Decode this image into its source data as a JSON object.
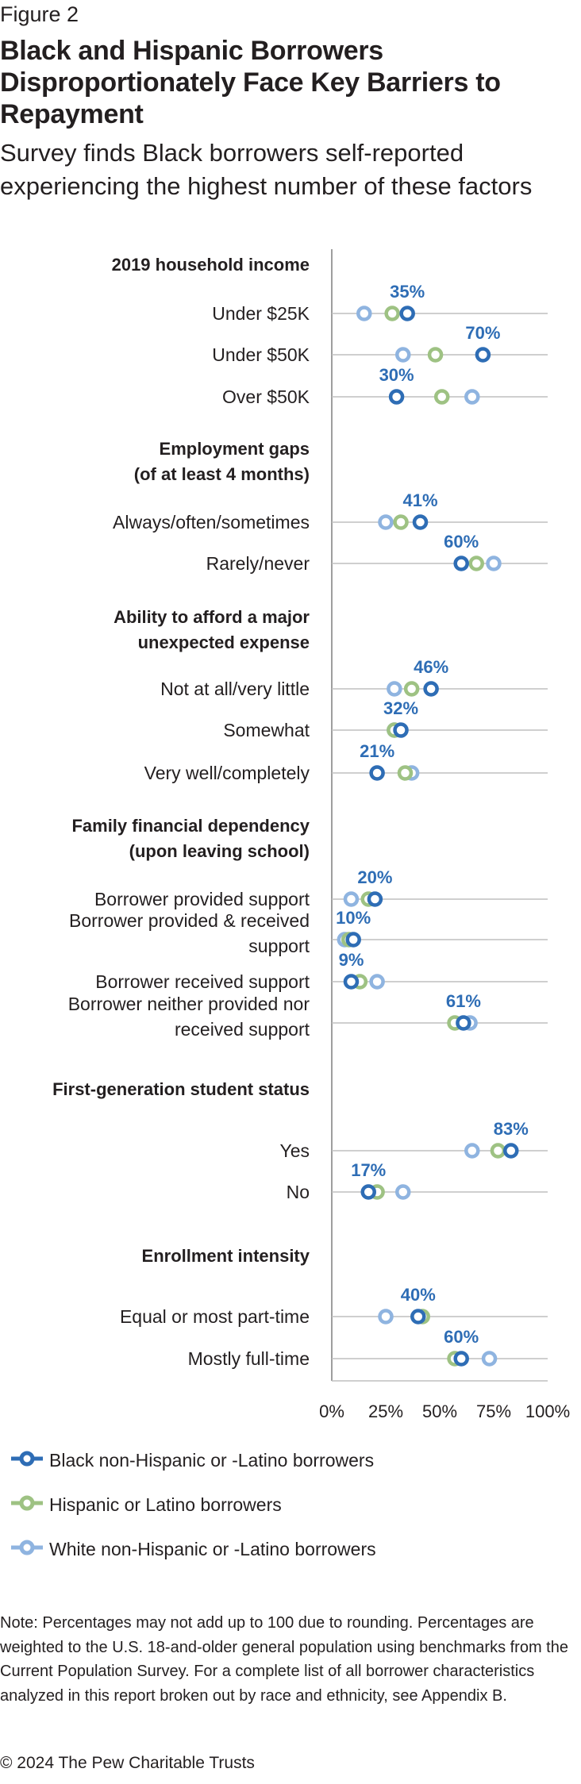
{
  "figure_label": "Figure 2",
  "title": "Black and Hispanic Borrowers Disproportionately Face Key Barriers to Repayment",
  "subtitle": "Survey finds Black borrowers self-reported experiencing the highest number of these factors",
  "note": "Note: Percentages may not add up to 100 due to rounding. Percentages are weighted to the U.S. 18-and-older general population using benchmarks from the Current Population Survey. For a complete list of all borrower characteristics analyzed in this report broken out by race and ethnicity, see Appendix B.",
  "copyright": "© 2024 The Pew Charitable Trusts",
  "colors": {
    "black": "#2e6db5",
    "hispanic": "#9ec283",
    "white": "#8fb4e0",
    "gridline": "#bfbfbf",
    "axis": "#7f7f7f",
    "label": "#2e6db5",
    "text": "#231f20"
  },
  "chart_data": {
    "type": "dot-plot",
    "xlim": [
      0,
      100
    ],
    "x_ticks": [
      "0%",
      "25%",
      "50%",
      "75%",
      "100%"
    ],
    "x_tick_values": [
      0,
      25,
      50,
      75,
      100
    ],
    "grid": false,
    "legend_position": "bottom-left",
    "series": [
      {
        "key": "black",
        "name": "Black non-Hispanic or -Latino borrowers"
      },
      {
        "key": "hispanic",
        "name": "Hispanic or Latino borrowers"
      },
      {
        "key": "white",
        "name": "White non-Hispanic or -Latino borrowers"
      }
    ],
    "groups": [
      {
        "header": [
          "2019 household income"
        ],
        "rows": [
          {
            "label": [
              "Under $25K"
            ],
            "black": 35,
            "hispanic": 28,
            "white": 15,
            "data_label": "35%"
          },
          {
            "label": [
              "Under $50K"
            ],
            "black": 70,
            "hispanic": 48,
            "white": 33,
            "data_label": "70%"
          },
          {
            "label": [
              "Over $50K"
            ],
            "black": 30,
            "hispanic": 51,
            "white": 65,
            "data_label": "30%"
          }
        ]
      },
      {
        "header": [
          "Employment gaps",
          "(of at least 4 months)"
        ],
        "rows": [
          {
            "label": [
              "Always/often/sometimes"
            ],
            "black": 41,
            "hispanic": 32,
            "white": 25,
            "data_label": "41%"
          },
          {
            "label": [
              "Rarely/never"
            ],
            "black": 60,
            "hispanic": 67,
            "white": 75,
            "data_label": "60%"
          }
        ]
      },
      {
        "header": [
          "Ability to afford a major",
          "unexpected expense"
        ],
        "rows": [
          {
            "label": [
              "Not at all/very little"
            ],
            "black": 46,
            "hispanic": 37,
            "white": 29,
            "data_label": "46%"
          },
          {
            "label": [
              "Somewhat"
            ],
            "black": 32,
            "hispanic": 29,
            "white": 29,
            "data_label": "32%"
          },
          {
            "label": [
              "Very well/completely"
            ],
            "black": 21,
            "hispanic": 34,
            "white": 37,
            "data_label": "21%"
          }
        ]
      },
      {
        "header": [
          "Family financial dependency",
          "(upon leaving school)"
        ],
        "rows": [
          {
            "label": [
              "Borrower provided support"
            ],
            "black": 20,
            "hispanic": 17,
            "white": 9,
            "data_label": "20%"
          },
          {
            "label": [
              "Borrower provided & received",
              "support"
            ],
            "black": 10,
            "hispanic": 8,
            "white": 6,
            "data_label": "10%"
          },
          {
            "label": [
              "Borrower received support"
            ],
            "black": 9,
            "hispanic": 13,
            "white": 21,
            "data_label": "9%"
          },
          {
            "label": [
              "Borrower neither provided nor",
              "received support"
            ],
            "black": 61,
            "hispanic": 57,
            "white": 64,
            "data_label": "61%"
          }
        ]
      },
      {
        "header": [
          "First-generation student status"
        ],
        "rows": [
          {
            "label": [
              "Yes"
            ],
            "black": 83,
            "hispanic": 77,
            "white": 65,
            "data_label": "83%"
          },
          {
            "label": [
              "No"
            ],
            "black": 17,
            "hispanic": 21,
            "white": 33,
            "data_label": "17%"
          }
        ]
      },
      {
        "header": [
          "Enrollment intensity"
        ],
        "rows": [
          {
            "label": [
              "Equal or most part-time"
            ],
            "black": 40,
            "hispanic": 42,
            "white": 25,
            "data_label": "40%"
          },
          {
            "label": [
              "Mostly full-time"
            ],
            "black": 60,
            "hispanic": 57,
            "white": 73,
            "data_label": "60%"
          }
        ]
      }
    ]
  }
}
